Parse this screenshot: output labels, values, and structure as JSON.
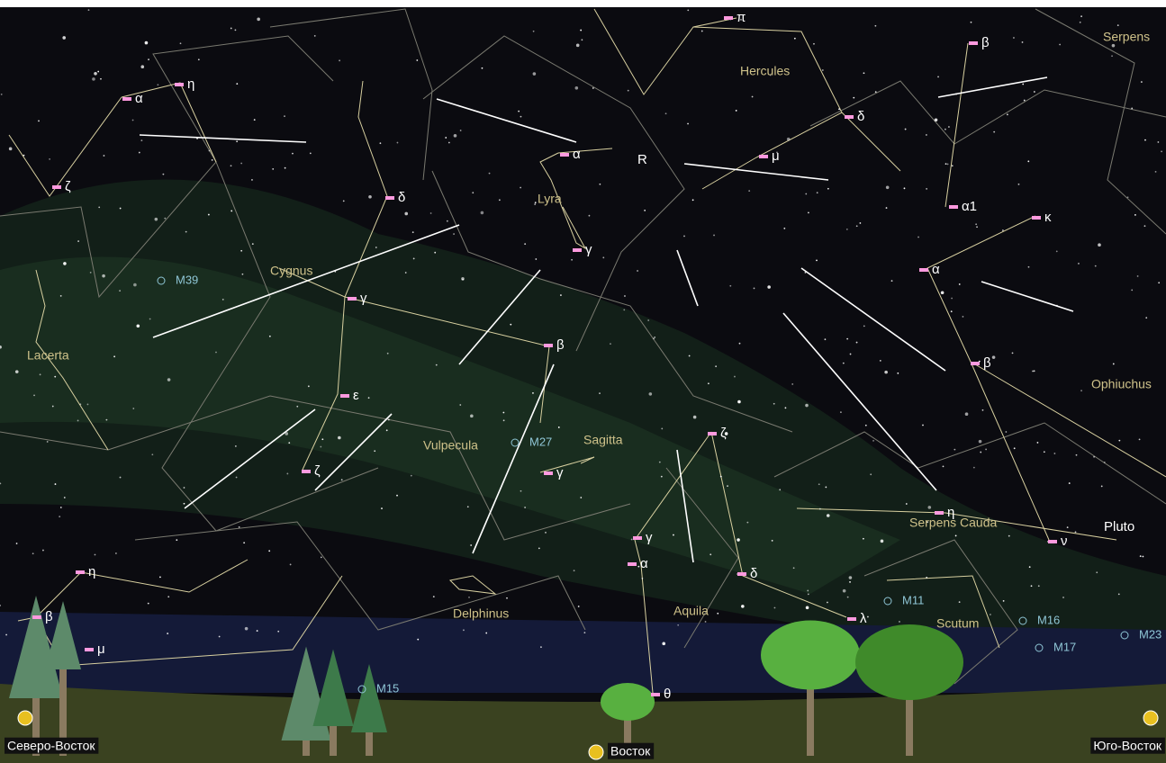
{
  "constellations": [
    "Hercules",
    "Lyra",
    "Cygnus",
    "Lacerta",
    "Vulpecula",
    "Sagitta",
    "Serpens Cauda",
    "Ophiuchus",
    "Delphinus",
    "Aquila",
    "Scutum",
    "Serpens"
  ],
  "stars": [
    "π",
    "β",
    "α",
    "η",
    "δ",
    "α",
    "μ",
    "ζ",
    "δ",
    "α1",
    "κ",
    "γ",
    "α",
    "γ",
    "β",
    "β",
    "ε",
    "ζ",
    "ζ",
    "γ",
    "η",
    "ν",
    "γ",
    "α",
    "δ",
    "η",
    "β",
    "λ",
    "μ",
    "θ"
  ],
  "other_labels": [
    "R",
    "Pluto"
  ],
  "objects": [
    "M39",
    "M27",
    "M11",
    "M16",
    "M17",
    "M23",
    "M15"
  ],
  "directions": [
    "Северо-Восток",
    "Восток",
    "Юго-Восток"
  ]
}
